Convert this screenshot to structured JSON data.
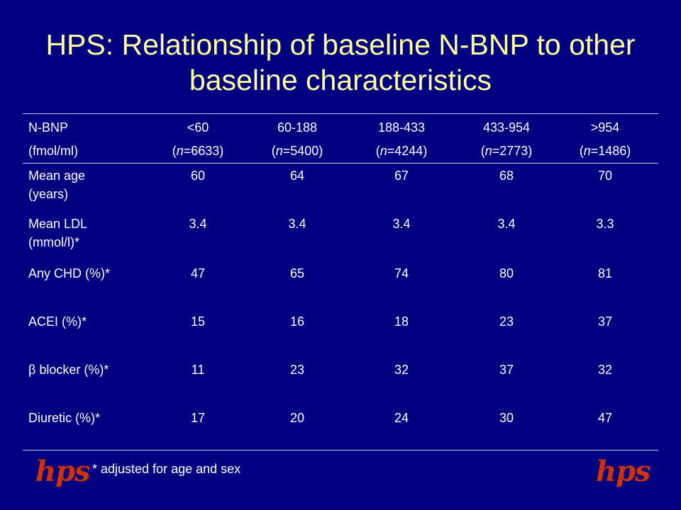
{
  "title": "HPS: Relationship of baseline N-BNP to other baseline characteristics",
  "header": {
    "label_line1": "N-BNP",
    "label_line2": "(fmol/ml)",
    "groups": [
      {
        "range": "<60",
        "n_prefix": "(",
        "n_italic": "n",
        "n_value": "=6633)"
      },
      {
        "range": "60-188",
        "n_prefix": "(",
        "n_italic": "n",
        "n_value": "=5400)"
      },
      {
        "range": "188-433",
        "n_prefix": "(",
        "n_italic": "n",
        "n_value": "=4244)"
      },
      {
        "range": "433-954",
        "n_prefix": "(",
        "n_italic": "n",
        "n_value": "=2773)"
      },
      {
        "range": ">954",
        "n_prefix": "(",
        "n_italic": "n",
        "n_value": "=1486)"
      }
    ]
  },
  "rows": [
    {
      "label_line1": "Mean age",
      "label_line2": "(years)",
      "values": [
        "60",
        "64",
        "67",
        "68",
        "70"
      ]
    },
    {
      "label_line1": "Mean LDL",
      "label_line2": "(mmol/l)*",
      "values": [
        "3.4",
        "3.4",
        "3.4",
        "3.4",
        "3.3"
      ]
    },
    {
      "label_line1": "Any CHD (%)*",
      "label_line2": "",
      "values": [
        "47",
        "65",
        "74",
        "80",
        "81"
      ]
    },
    {
      "label_line1": "ACEI (%)*",
      "label_line2": "",
      "values": [
        "15",
        "16",
        "18",
        "23",
        "37"
      ]
    },
    {
      "label_line1": "β blocker (%)*",
      "label_line2": "",
      "values": [
        "11",
        "23",
        "32",
        "37",
        "32"
      ]
    },
    {
      "label_line1": "Diuretic (%)*",
      "label_line2": "",
      "values": [
        "17",
        "20",
        "24",
        "30",
        "47"
      ]
    }
  ],
  "footnote": "* adjusted for age and sex",
  "logo_text": "hps",
  "colors": {
    "background": "#000080",
    "title": "#ffff99",
    "text": "#ffffff",
    "logo": "#cc3300"
  }
}
